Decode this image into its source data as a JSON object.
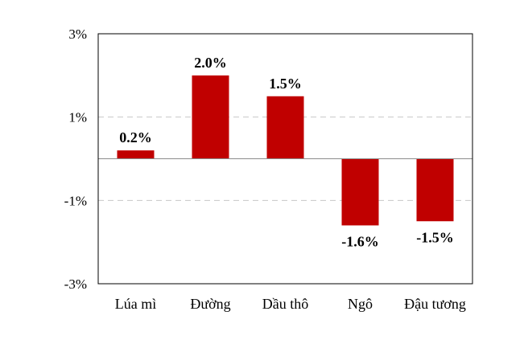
{
  "chart_data": {
    "type": "bar",
    "categories": [
      "Lúa mì",
      "Đường",
      "Dầu thô",
      "Ngô",
      "Đậu tương"
    ],
    "values": [
      0.2,
      2.0,
      1.5,
      -1.6,
      -1.5
    ],
    "data_labels": [
      "0.2%",
      "2.0%",
      "1.5%",
      "-1.6%",
      "-1.5%"
    ],
    "yticks": [
      3,
      1,
      -1,
      -3
    ],
    "ytick_labels": [
      "3%",
      "1%",
      "-1%",
      "-3%"
    ],
    "ylim": [
      -3,
      3
    ],
    "grid": "horizontal dashed",
    "bar_color": "#C00000",
    "title": "",
    "xlabel": "",
    "ylabel": ""
  }
}
